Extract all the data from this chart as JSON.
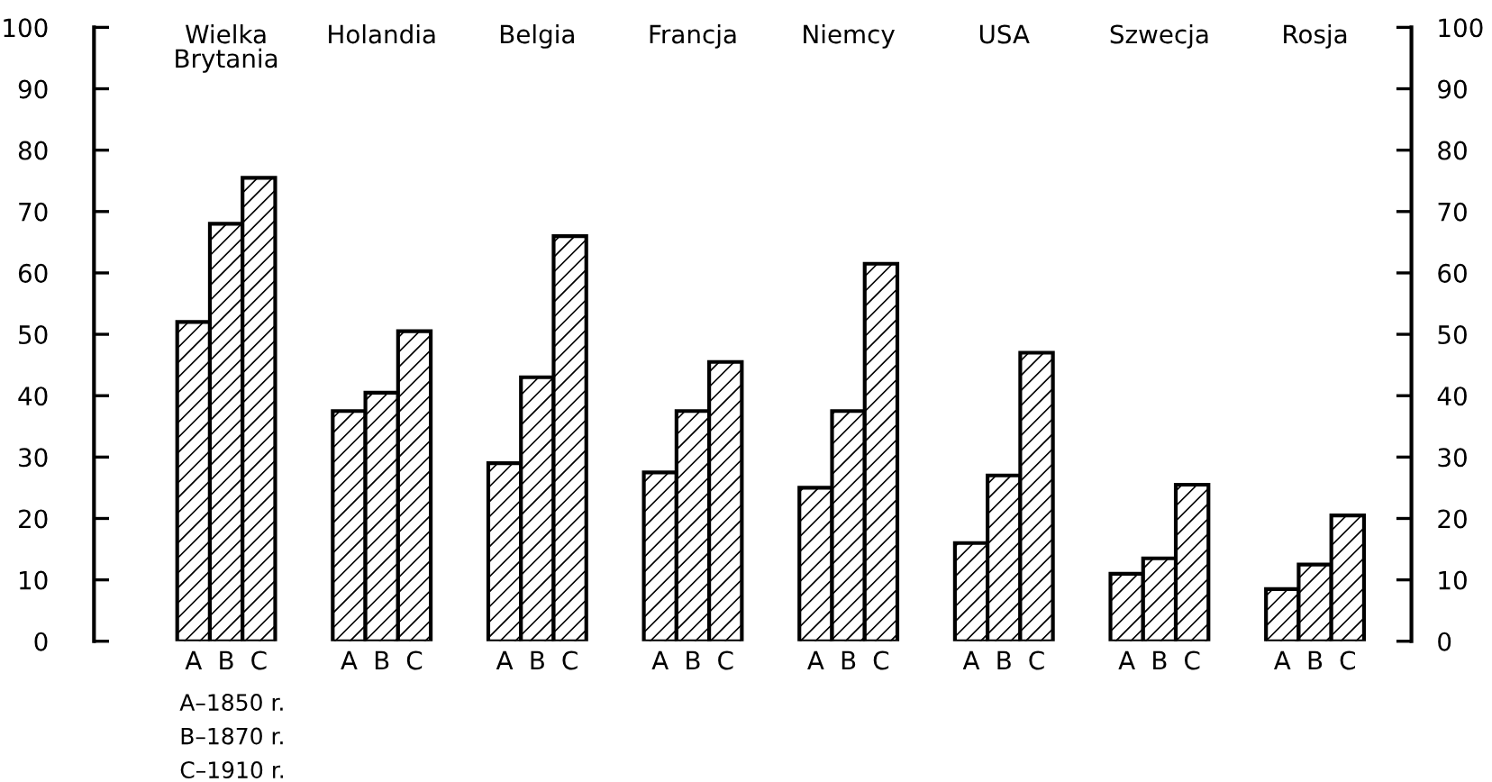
{
  "chart_data": {
    "type": "bar",
    "categories": [
      "Wielka Brytania",
      "Holandia",
      "Belgia",
      "Francja",
      "Niemcy",
      "USA",
      "Szwecja",
      "Rosja"
    ],
    "series": [
      {
        "name": "A",
        "color": "#000000",
        "values": [
          52,
          37.5,
          29,
          27.5,
          25,
          16,
          11,
          8.5
        ]
      },
      {
        "name": "B",
        "color": "#000000",
        "values": [
          68,
          40.5,
          43,
          37.5,
          37.5,
          27,
          13.5,
          12.5
        ]
      },
      {
        "name": "C",
        "color": "#000000",
        "values": [
          75.5,
          50.5,
          66,
          45.5,
          61.5,
          47,
          25.5,
          20.5
        ]
      }
    ],
    "ylim": [
      0,
      100
    ],
    "yticks": [
      0,
      10,
      20,
      30,
      40,
      50,
      60,
      70,
      80,
      90,
      100
    ],
    "y2lim": [
      0,
      100
    ],
    "y2ticks": [
      0,
      10,
      20,
      30,
      40,
      50,
      60,
      70,
      80,
      90,
      100
    ],
    "annotations": [
      "A–1850 r.",
      "B–1870 r.",
      "C–1910 r."
    ],
    "grid": false,
    "legend": false
  }
}
